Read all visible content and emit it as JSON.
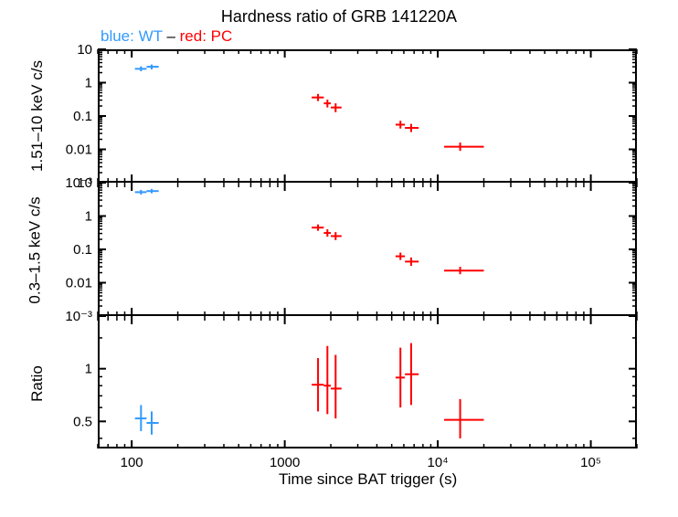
{
  "title": "Hardness ratio of GRB 141220A",
  "subtitle_prefix": "blue: WT – red: PC",
  "xlabel": "Time since BAT trigger (s)",
  "ylabel_panel1": "1.51–10 keV c/s",
  "ylabel_panel2": "0.3–1.5 keV c/s",
  "ylabel_panel3": "Ratio",
  "x_ticks": [
    "100",
    "1000",
    "10⁴",
    "10⁵"
  ],
  "y_ticks_log": [
    "10",
    "1",
    "0.1",
    "0.01",
    "10⁻³"
  ],
  "y_ticks_ratio": [
    "1",
    "0.5"
  ],
  "colors": {
    "wt": "#3399ff",
    "pc": "#ff0000",
    "axis": "#000000",
    "background": "#ffffff"
  },
  "panel1": {
    "ylim": [
      0.001,
      10
    ],
    "wt_points": [
      {
        "x": 115,
        "y": 2.6,
        "xerr": [
          105,
          125
        ],
        "yerr": [
          2.2,
          3.1
        ]
      },
      {
        "x": 135,
        "y": 3.0,
        "xerr": [
          125,
          150
        ],
        "yerr": [
          2.5,
          3.5
        ]
      }
    ],
    "pc_points": [
      {
        "x": 1650,
        "y": 0.36,
        "xerr": [
          1500,
          1800
        ],
        "yerr": [
          0.28,
          0.46
        ]
      },
      {
        "x": 1900,
        "y": 0.24,
        "xerr": [
          1800,
          2000
        ],
        "yerr": [
          0.18,
          0.31
        ]
      },
      {
        "x": 2150,
        "y": 0.18,
        "xerr": [
          2000,
          2350
        ],
        "yerr": [
          0.13,
          0.24
        ]
      },
      {
        "x": 5700,
        "y": 0.055,
        "xerr": [
          5300,
          6100
        ],
        "yerr": [
          0.042,
          0.072
        ]
      },
      {
        "x": 6700,
        "y": 0.044,
        "xerr": [
          6100,
          7500
        ],
        "yerr": [
          0.033,
          0.058
        ]
      },
      {
        "x": 14000,
        "y": 0.012,
        "xerr": [
          11000,
          20000
        ],
        "yerr": [
          0.009,
          0.016
        ]
      }
    ]
  },
  "panel2": {
    "ylim": [
      0.001,
      10
    ],
    "wt_points": [
      {
        "x": 115,
        "y": 5.2,
        "xerr": [
          105,
          125
        ],
        "yerr": [
          4.4,
          6.1
        ]
      },
      {
        "x": 135,
        "y": 5.6,
        "xerr": [
          125,
          150
        ],
        "yerr": [
          4.8,
          6.5
        ]
      }
    ],
    "pc_points": [
      {
        "x": 1650,
        "y": 0.45,
        "xerr": [
          1500,
          1800
        ],
        "yerr": [
          0.36,
          0.56
        ]
      },
      {
        "x": 1900,
        "y": 0.31,
        "xerr": [
          1800,
          2000
        ],
        "yerr": [
          0.24,
          0.4
        ]
      },
      {
        "x": 2150,
        "y": 0.25,
        "xerr": [
          2000,
          2350
        ],
        "yerr": [
          0.19,
          0.33
        ]
      },
      {
        "x": 5700,
        "y": 0.062,
        "xerr": [
          5300,
          6100
        ],
        "yerr": [
          0.048,
          0.08
        ]
      },
      {
        "x": 6700,
        "y": 0.043,
        "xerr": [
          6100,
          7500
        ],
        "yerr": [
          0.032,
          0.057
        ]
      },
      {
        "x": 14000,
        "y": 0.023,
        "xerr": [
          11000,
          20000
        ],
        "yerr": [
          0.018,
          0.03
        ]
      }
    ]
  },
  "panel3": {
    "ylim": [
      0.35,
      2.0
    ],
    "wt_points": [
      {
        "x": 115,
        "y": 0.52,
        "xerr": [
          105,
          125
        ],
        "yerr": [
          0.44,
          0.62
        ]
      },
      {
        "x": 135,
        "y": 0.49,
        "xerr": [
          125,
          150
        ],
        "yerr": [
          0.42,
          0.57
        ]
      }
    ],
    "pc_points": [
      {
        "x": 1650,
        "y": 0.81,
        "xerr": [
          1500,
          1800
        ],
        "yerr": [
          0.57,
          1.15
        ]
      },
      {
        "x": 1900,
        "y": 0.8,
        "xerr": [
          1800,
          2000
        ],
        "yerr": [
          0.55,
          1.35
        ]
      },
      {
        "x": 2150,
        "y": 0.77,
        "xerr": [
          2000,
          2350
        ],
        "yerr": [
          0.52,
          1.2
        ]
      },
      {
        "x": 5700,
        "y": 0.89,
        "xerr": [
          5300,
          6100
        ],
        "yerr": [
          0.6,
          1.32
        ]
      },
      {
        "x": 6700,
        "y": 0.93,
        "xerr": [
          6100,
          7500
        ],
        "yerr": [
          0.62,
          1.4
        ]
      },
      {
        "x": 14000,
        "y": 0.51,
        "xerr": [
          11000,
          20000
        ],
        "yerr": [
          0.4,
          0.67
        ]
      }
    ]
  },
  "xlim": [
    60,
    200000
  ],
  "line_width": 2,
  "cap_size": 0
}
